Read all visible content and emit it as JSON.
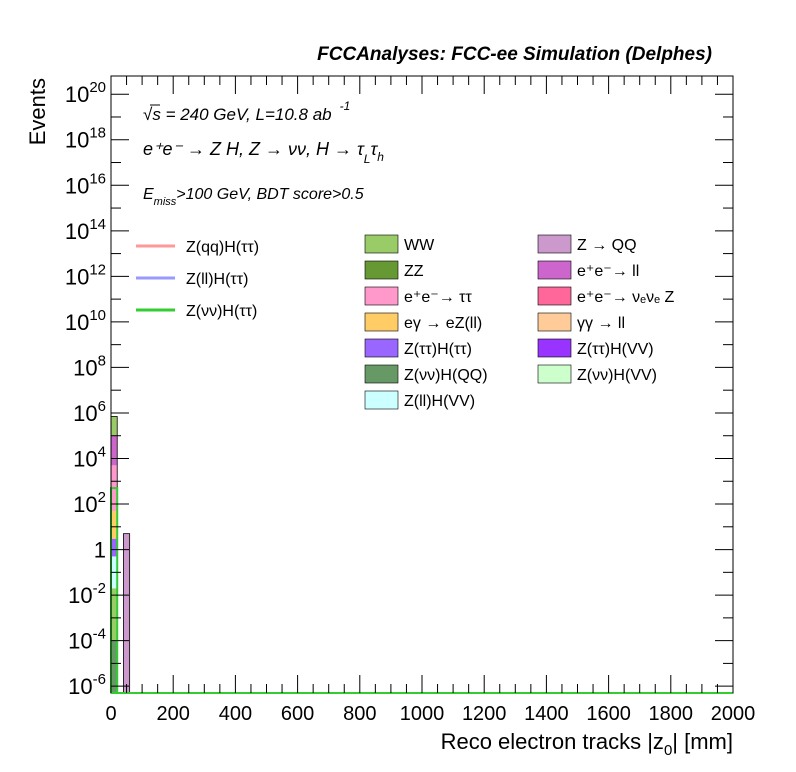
{
  "chart_data": {
    "type": "bar",
    "title": "FCCAnalyses: FCC-ee Simulation (Delphes)",
    "xlabel": "Reco electron tracks |z",
    "xlabel_sub": "0",
    "xlabel_suffix": "| [mm]",
    "ylabel": "Events",
    "xlim": [
      0,
      2000
    ],
    "ylim_log10": [
      -6.3,
      20.8
    ],
    "log_y": true,
    "x_ticks": [
      "0",
      "200",
      "400",
      "600",
      "800",
      "1000",
      "1200",
      "1400",
      "1600",
      "1800",
      "2000"
    ],
    "y_ticks": [
      {
        "base": "10",
        "exp": "20",
        "log": 20
      },
      {
        "base": "10",
        "exp": "18",
        "log": 18
      },
      {
        "base": "10",
        "exp": "16",
        "log": 16
      },
      {
        "base": "10",
        "exp": "14",
        "log": 14
      },
      {
        "base": "10",
        "exp": "12",
        "log": 12
      },
      {
        "base": "10",
        "exp": "10",
        "log": 10
      },
      {
        "base": "10",
        "exp": "8",
        "log": 8
      },
      {
        "base": "10",
        "exp": "6",
        "log": 6
      },
      {
        "base": "10",
        "exp": "4",
        "log": 4
      },
      {
        "base": "10",
        "exp": "2",
        "log": 2
      },
      {
        "base": "1",
        "exp": "",
        "log": 0
      },
      {
        "base": "10",
        "exp": "-2",
        "log": -2
      },
      {
        "base": "10",
        "exp": "-4",
        "log": -4
      },
      {
        "base": "10",
        "exp": "-6",
        "log": -6
      }
    ],
    "annotations": {
      "line1_sqrt": "√s",
      "line1_rest": " = 240 GeV, L=10.8 ab",
      "line1_exp": "-1",
      "line2": "e⁺e⁻ → Z H, Z → νν, H → τ",
      "line2_sub1": "L",
      "line2_tau": "τ",
      "line2_sub2": "h",
      "line3_pre": "E",
      "line3_sub": "miss",
      "line3_rest": ">100 GeV, BDT score>0.5"
    },
    "signals": [
      {
        "name": "Z(qq)H(ττ)",
        "color": "#ff9999"
      },
      {
        "name": "Z(ll)H(ττ)",
        "color": "#9999ff"
      },
      {
        "name": "Z(νν)H(ττ)",
        "color": "#33cc33"
      }
    ],
    "backgrounds_col1": [
      {
        "name": "WW",
        "color": "#99cc66"
      },
      {
        "name": "ZZ",
        "color": "#669933"
      },
      {
        "name": "e⁺e⁻→ ττ",
        "color": "#ff99cc"
      },
      {
        "name": "eγ → eZ(ll)",
        "color": "#ffcc66"
      },
      {
        "name": "Z(ττ)H(ττ)",
        "color": "#9966ff"
      },
      {
        "name": "Z(νν)H(QQ)",
        "color": "#669966"
      },
      {
        "name": "Z(ll)H(VV)",
        "color": "#ccffff"
      }
    ],
    "backgrounds_col2": [
      {
        "name": "Z → QQ",
        "color": "#cc99cc"
      },
      {
        "name": "e⁺e⁻→ ll",
        "color": "#cc66cc"
      },
      {
        "name": "e⁺e⁻→ νₑνₑ Z",
        "color": "#ff6699"
      },
      {
        "name": "γγ → ll",
        "color": "#ffcc99"
      },
      {
        "name": "Z(ττ)H(VV)",
        "color": "#9933ff"
      },
      {
        "name": "Z(νν)H(VV)",
        "color": "#ccffcc"
      }
    ],
    "stacked_bins": [
      {
        "x_range": [
          0,
          20
        ],
        "segments": [
          {
            "process": "Z(νν)H(QQ)",
            "y_top": 0.0001,
            "color": "#669966"
          },
          {
            "process": "WW",
            "y_top": 0.02,
            "color": "#99cc66"
          },
          {
            "process": "Z(ll)H(VV)",
            "y_top": 0.5,
            "color": "#ccffff"
          },
          {
            "process": "Z(ττ)H(ττ)",
            "y_top": 3,
            "color": "#9966ff"
          },
          {
            "process": "eγ → eZ(ll)",
            "y_top": 50,
            "color": "#ffcc66"
          },
          {
            "process": "e⁺e⁻→ ττ",
            "y_top": 5000,
            "color": "#ff99cc"
          },
          {
            "process": "e⁺e⁻→ ll",
            "y_top": 100000,
            "color": "#cc66cc"
          },
          {
            "process": "WW",
            "y_top": 700000,
            "color": "#99cc66"
          }
        ]
      },
      {
        "x_range": [
          40,
          60
        ],
        "segments": [
          {
            "process": "Z → QQ",
            "y_top": 5,
            "color": "#cc99cc"
          }
        ]
      }
    ],
    "signal_lines": [
      {
        "name": "Z(νν)H(ττ)",
        "color": "#33cc33",
        "x_range": [
          0,
          20
        ],
        "y": 500
      }
    ]
  }
}
